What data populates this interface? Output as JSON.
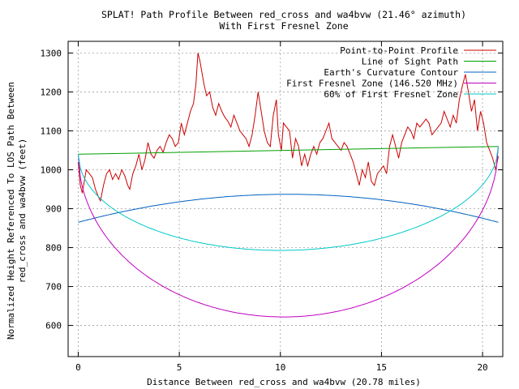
{
  "chart_data": {
    "type": "line",
    "title": "SPLAT! Path Profile Between red_cross and wa4bvw (21.46° azimuth)",
    "subtitle": "With First Fresnel Zone",
    "xlabel": "Distance Between red_cross and wa4bvw (20.78 miles)",
    "ylabel_line1": "Normalized Height Referenced To LOS Path Between",
    "ylabel_line2": "red_cross and wa4bvw (feet)",
    "xlim": [
      -0.5,
      21.0
    ],
    "ylim": [
      520,
      1330
    ],
    "x_ticks": [
      0,
      5,
      10,
      15,
      20
    ],
    "y_ticks": [
      600,
      700,
      800,
      900,
      1000,
      1100,
      1200,
      1300
    ],
    "grid": true,
    "legend_position": "top-right",
    "series": [
      {
        "name": "Point-to-Point Profile",
        "color": "#cc0000",
        "points": [
          [
            0,
            1020
          ],
          [
            0.1,
            960
          ],
          [
            0.2,
            940
          ],
          [
            0.3,
            970
          ],
          [
            0.4,
            1000
          ],
          [
            0.55,
            990
          ],
          [
            0.7,
            980
          ],
          [
            0.85,
            950
          ],
          [
            1.0,
            930
          ],
          [
            1.1,
            920
          ],
          [
            1.25,
            960
          ],
          [
            1.4,
            990
          ],
          [
            1.55,
            1000
          ],
          [
            1.7,
            975
          ],
          [
            1.85,
            990
          ],
          [
            2.0,
            975
          ],
          [
            2.15,
            1000
          ],
          [
            2.3,
            985
          ],
          [
            2.45,
            960
          ],
          [
            2.55,
            950
          ],
          [
            2.7,
            990
          ],
          [
            2.85,
            1010
          ],
          [
            3.0,
            1040
          ],
          [
            3.15,
            1000
          ],
          [
            3.3,
            1025
          ],
          [
            3.45,
            1070
          ],
          [
            3.6,
            1040
          ],
          [
            3.75,
            1030
          ],
          [
            3.9,
            1050
          ],
          [
            4.05,
            1060
          ],
          [
            4.2,
            1045
          ],
          [
            4.35,
            1070
          ],
          [
            4.5,
            1090
          ],
          [
            4.65,
            1080
          ],
          [
            4.8,
            1060
          ],
          [
            4.95,
            1070
          ],
          [
            5.1,
            1120
          ],
          [
            5.25,
            1090
          ],
          [
            5.4,
            1120
          ],
          [
            5.55,
            1150
          ],
          [
            5.7,
            1170
          ],
          [
            5.82,
            1220
          ],
          [
            5.92,
            1300
          ],
          [
            6.02,
            1280
          ],
          [
            6.12,
            1250
          ],
          [
            6.22,
            1220
          ],
          [
            6.35,
            1190
          ],
          [
            6.5,
            1200
          ],
          [
            6.65,
            1160
          ],
          [
            6.8,
            1140
          ],
          [
            6.95,
            1170
          ],
          [
            7.1,
            1150
          ],
          [
            7.25,
            1135
          ],
          [
            7.4,
            1125
          ],
          [
            7.55,
            1110
          ],
          [
            7.7,
            1140
          ],
          [
            7.85,
            1120
          ],
          [
            8.0,
            1100
          ],
          [
            8.15,
            1090
          ],
          [
            8.3,
            1080
          ],
          [
            8.45,
            1060
          ],
          [
            8.6,
            1090
          ],
          [
            8.75,
            1140
          ],
          [
            8.9,
            1200
          ],
          [
            9.05,
            1150
          ],
          [
            9.2,
            1100
          ],
          [
            9.35,
            1070
          ],
          [
            9.5,
            1060
          ],
          [
            9.65,
            1140
          ],
          [
            9.8,
            1180
          ],
          [
            9.9,
            1090
          ],
          [
            10.05,
            1050
          ],
          [
            10.15,
            1120
          ],
          [
            10.3,
            1110
          ],
          [
            10.45,
            1100
          ],
          [
            10.6,
            1030
          ],
          [
            10.75,
            1080
          ],
          [
            10.9,
            1060
          ],
          [
            11.05,
            1010
          ],
          [
            11.2,
            1040
          ],
          [
            11.35,
            1010
          ],
          [
            11.5,
            1040
          ],
          [
            11.65,
            1060
          ],
          [
            11.8,
            1040
          ],
          [
            11.95,
            1070
          ],
          [
            12.1,
            1080
          ],
          [
            12.25,
            1100
          ],
          [
            12.4,
            1120
          ],
          [
            12.55,
            1080
          ],
          [
            12.7,
            1070
          ],
          [
            12.85,
            1060
          ],
          [
            13.0,
            1050
          ],
          [
            13.15,
            1070
          ],
          [
            13.3,
            1060
          ],
          [
            13.45,
            1040
          ],
          [
            13.6,
            1020
          ],
          [
            13.75,
            990
          ],
          [
            13.9,
            960
          ],
          [
            14.05,
            1000
          ],
          [
            14.2,
            980
          ],
          [
            14.35,
            1020
          ],
          [
            14.5,
            970
          ],
          [
            14.65,
            960
          ],
          [
            14.8,
            990
          ],
          [
            14.95,
            1000
          ],
          [
            15.1,
            1010
          ],
          [
            15.25,
            990
          ],
          [
            15.4,
            1060
          ],
          [
            15.55,
            1090
          ],
          [
            15.7,
            1060
          ],
          [
            15.85,
            1030
          ],
          [
            16.0,
            1070
          ],
          [
            16.15,
            1090
          ],
          [
            16.3,
            1110
          ],
          [
            16.45,
            1100
          ],
          [
            16.6,
            1080
          ],
          [
            16.75,
            1120
          ],
          [
            16.9,
            1110
          ],
          [
            17.05,
            1120
          ],
          [
            17.2,
            1130
          ],
          [
            17.35,
            1120
          ],
          [
            17.5,
            1090
          ],
          [
            17.65,
            1100
          ],
          [
            17.8,
            1110
          ],
          [
            17.95,
            1120
          ],
          [
            18.1,
            1150
          ],
          [
            18.25,
            1130
          ],
          [
            18.4,
            1110
          ],
          [
            18.55,
            1140
          ],
          [
            18.7,
            1120
          ],
          [
            18.85,
            1180
          ],
          [
            19.0,
            1215
          ],
          [
            19.15,
            1245
          ],
          [
            19.3,
            1200
          ],
          [
            19.45,
            1150
          ],
          [
            19.6,
            1180
          ],
          [
            19.75,
            1100
          ],
          [
            19.9,
            1150
          ],
          [
            20.05,
            1120
          ],
          [
            20.2,
            1070
          ],
          [
            20.35,
            1050
          ],
          [
            20.5,
            1030
          ],
          [
            20.65,
            1000
          ],
          [
            20.78,
            1035
          ]
        ]
      },
      {
        "name": "Line of Sight Path",
        "color": "#00a000",
        "points": [
          [
            0,
            1040
          ],
          [
            20.78,
            1060
          ]
        ]
      },
      {
        "name": "Earth's Curvature Contour",
        "color": "#0060c0",
        "function": "curvature",
        "ends": 865,
        "peak": 937
      },
      {
        "name": "First Fresnel Zone (146.520 MHz)",
        "color": "#c000c0",
        "function": "fresnel",
        "los": [
          1040,
          1060
        ],
        "depth": 428
      },
      {
        "name": "60% of First Fresnel Zone",
        "color": "#00c8c8",
        "function": "fresnel",
        "los": [
          1040,
          1060
        ],
        "depth": 257
      }
    ]
  }
}
